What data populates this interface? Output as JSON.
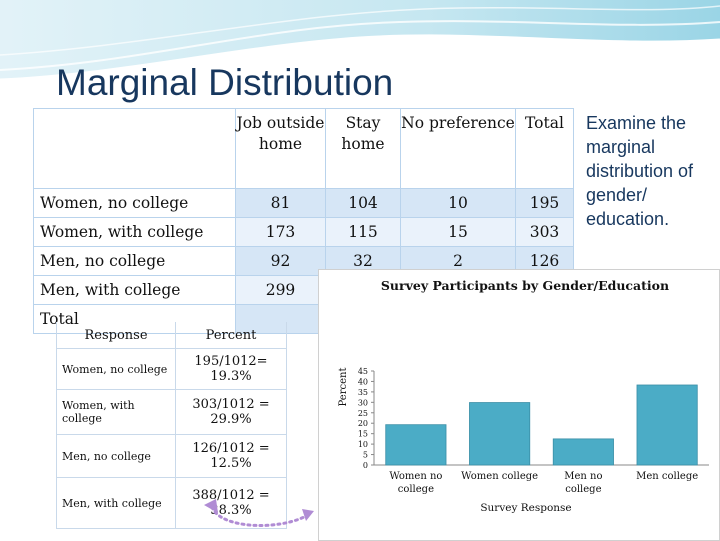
{
  "title": "Marginal Distribution",
  "side_text": "Examine the marginal distribution of gender/ education.",
  "main_table": {
    "columns": [
      "Job outside home",
      "Stay home",
      "No preference",
      "Total"
    ],
    "rows": [
      {
        "label": "Women, no college",
        "values": [
          "81",
          "104",
          "10",
          "195"
        ]
      },
      {
        "label": "Women, with college",
        "values": [
          "173",
          "115",
          "15",
          "303"
        ]
      },
      {
        "label": "Men, no college",
        "values": [
          "92",
          "32",
          "2",
          "126"
        ]
      },
      {
        "label": "Men, with college",
        "values": [
          "299",
          "",
          "",
          ""
        ]
      },
      {
        "label": "Total",
        "values": [
          "",
          "",
          "",
          ""
        ]
      }
    ]
  },
  "percent_table": {
    "header_response": "Response",
    "header_percent": "Percent",
    "rows": [
      {
        "response": "Women, no college",
        "percent": "195/1012= 19.3%"
      },
      {
        "response": "Women, with college",
        "percent": "303/1012 = 29.9%"
      },
      {
        "response": "Men, no college",
        "percent": "126/1012 = 12.5%"
      },
      {
        "response": "Men, with college",
        "percent": "388/1012 = 38.3%"
      }
    ]
  },
  "chart_data": {
    "type": "bar",
    "title": "Survey Participants by Gender/Education",
    "xlabel": "Survey Response",
    "ylabel": "Percent",
    "categories": [
      "Women no college",
      "Women college",
      "Men no college",
      "Men college"
    ],
    "values": [
      19.3,
      29.9,
      12.5,
      38.3
    ],
    "ylim": [
      0,
      45
    ],
    "yticks": [
      "0",
      "5",
      "10",
      "15",
      "20",
      "25",
      "30",
      "35",
      "40",
      "45"
    ],
    "bar_color": "#4bacc6",
    "grid": false,
    "legend": "none"
  },
  "colors": {
    "title": "#17375e",
    "table_border": "#b9d3ec",
    "table_fill": "#d6e6f6",
    "bar": "#4bacc6"
  }
}
